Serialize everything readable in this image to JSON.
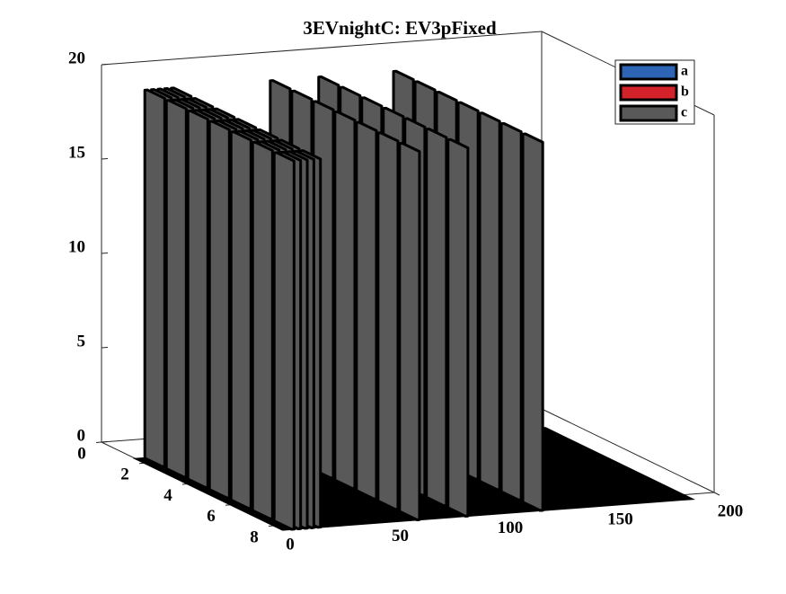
{
  "chart_data": {
    "type": "bar3",
    "title": "3EVnightC: EV3pFixed",
    "rows": [
      2,
      3,
      4,
      5,
      6,
      7,
      8
    ],
    "x": [
      4,
      7,
      10,
      13,
      16,
      61,
      83,
      117
    ],
    "series": [
      {
        "name": "a",
        "color": "#2e64b4",
        "values": [
          [
            0,
            0,
            0,
            0,
            0,
            0,
            0
          ],
          [
            0,
            0,
            0,
            0,
            0,
            0,
            0
          ],
          [
            0,
            0,
            0,
            0,
            0,
            0,
            0
          ],
          [
            0,
            0,
            0,
            0,
            0,
            0,
            0
          ],
          [
            0,
            0,
            0,
            0,
            0,
            0,
            0
          ],
          [
            0,
            0,
            0,
            0,
            0,
            0,
            0
          ],
          [
            0,
            0,
            0,
            0,
            0,
            0,
            0
          ],
          [
            0,
            0,
            0,
            0,
            0,
            0,
            0
          ]
        ]
      },
      {
        "name": "b",
        "color": "#d3222a",
        "values": [
          [
            0,
            0,
            0,
            0,
            0,
            0,
            0
          ],
          [
            0,
            0,
            0,
            0,
            0,
            0,
            0
          ],
          [
            0,
            0,
            0,
            0,
            0,
            0,
            0
          ],
          [
            0,
            0,
            0,
            0,
            0,
            0,
            0
          ],
          [
            0,
            0,
            0,
            0,
            0,
            0,
            0
          ],
          [
            0,
            0,
            0,
            0,
            0,
            0,
            0
          ],
          [
            0,
            0,
            0,
            0,
            0,
            0,
            0
          ],
          [
            0,
            0,
            0,
            0,
            0,
            0,
            0
          ]
        ]
      },
      {
        "name": "c",
        "color": "#595959",
        "values": [
          [
            19.5,
            19.5,
            19.5,
            19.5,
            19.5,
            19.5,
            19.5
          ],
          [
            19.5,
            19.5,
            19.5,
            19.5,
            19.5,
            19.5,
            19.5
          ],
          [
            19.5,
            19.5,
            19.5,
            19.5,
            19.5,
            19.5,
            19.5
          ],
          [
            19.5,
            19.5,
            19.5,
            19.5,
            19.5,
            19.5,
            19.5
          ],
          [
            19.5,
            19.5,
            19.5,
            19.5,
            19.5,
            19.5,
            19.5
          ],
          [
            19.5,
            19.5,
            19.5,
            19.5,
            19.5,
            19.5,
            19.5
          ],
          [
            19.5,
            19.5,
            19.5,
            19.5,
            19.5,
            19.5,
            19.5
          ],
          [
            19.5,
            19.5,
            19.5,
            19.5,
            19.5,
            19.5,
            19.5
          ]
        ]
      }
    ],
    "rowlim": [
      0,
      8
    ],
    "rowticks": [
      0,
      2,
      4,
      6,
      8
    ],
    "xlim": [
      0,
      200
    ],
    "xticks": [
      0,
      50,
      100,
      150,
      200
    ],
    "zlim": [
      0,
      20
    ],
    "zticks": [
      0,
      5,
      10,
      15,
      20
    ],
    "legend": "top-right"
  }
}
